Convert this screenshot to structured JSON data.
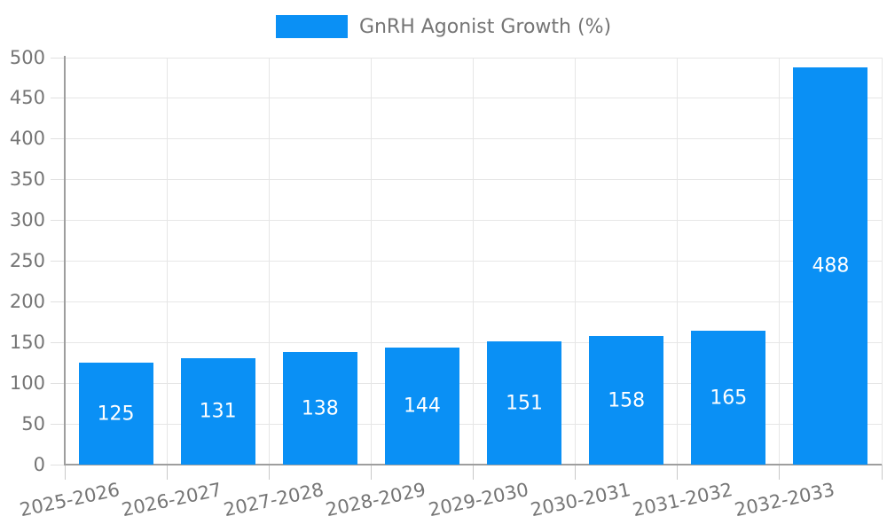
{
  "legend": {
    "label": "GnRH Agonist Growth (%)"
  },
  "chart_data": {
    "type": "bar",
    "title": "",
    "legend": "GnRH Agonist Growth (%)",
    "legend_position": "top",
    "categories": [
      "2025-2026",
      "2026-2027",
      "2027-2028",
      "2028-2029",
      "2029-2030",
      "2030-2031",
      "2031-2032",
      "2032-2033"
    ],
    "values": [
      125,
      131,
      138,
      144,
      151,
      158,
      165,
      488
    ],
    "bar_value_labels": [
      "125",
      "131",
      "138",
      "144",
      "151",
      "158",
      "165",
      "488"
    ],
    "xlabel": "",
    "ylabel": "",
    "ylim": [
      0,
      500
    ],
    "ytick_step": 50,
    "ytick_labels": [
      "0",
      "50",
      "100",
      "150",
      "200",
      "250",
      "300",
      "350",
      "400",
      "450",
      "500"
    ],
    "grid": true,
    "colors": {
      "bar": "#0a90f5",
      "bar_label": "#ffffff",
      "grid": "#e6e6e6",
      "axis": "#9e9e9e",
      "ytick_stub": "#e0e0e0",
      "xtick_stub": "#c9c9c9",
      "text": "#757575",
      "background": "#ffffff"
    }
  }
}
